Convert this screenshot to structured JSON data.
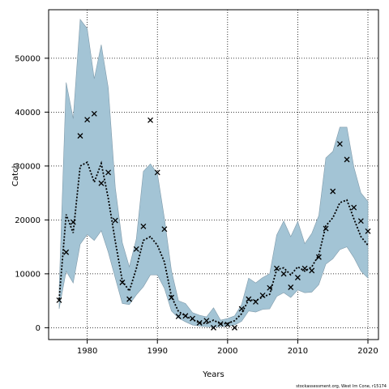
{
  "chart_data": {
    "type": "line",
    "title": "",
    "xlabel": "Years",
    "ylabel": "Catch",
    "xlim": [
      1974.5,
      2021.5
    ],
    "ylim": [
      -2200,
      59000
    ],
    "x_ticks": [
      1980,
      1990,
      2000,
      2010,
      2020
    ],
    "y_ticks": [
      0,
      10000,
      20000,
      30000,
      40000,
      50000
    ],
    "grid": true,
    "grid_style": "dotted",
    "legend": "none",
    "caption": "stockassessment.org, West Irn Cone, r15174",
    "colors": {
      "band": "#a3c4d5",
      "band_edge": "#7f9aaa",
      "line": "#000000",
      "points": "#000000"
    },
    "series": [
      {
        "kind": "band",
        "x": [
          1976,
          1977,
          1978,
          1979,
          1980,
          1981,
          1982,
          1983,
          1984,
          1985,
          1986,
          1987,
          1988,
          1989,
          1990,
          1991,
          1992,
          1993,
          1994,
          1995,
          1996,
          1997,
          1998,
          1999,
          2000,
          2001,
          2002,
          2003,
          2004,
          2005,
          2006,
          2007,
          2008,
          2009,
          2010,
          2011,
          2012,
          2013,
          2014,
          2015,
          2016,
          2017,
          2018,
          2019,
          2020
        ],
        "lower": [
          3500,
          10500,
          8300,
          15500,
          17300,
          16200,
          18000,
          14000,
          9200,
          4500,
          4300,
          6100,
          7600,
          9800,
          9800,
          7300,
          3100,
          1800,
          1100,
          500,
          300,
          200,
          100,
          200,
          300,
          500,
          1200,
          3100,
          2900,
          3400,
          3500,
          5800,
          6500,
          5600,
          7000,
          6500,
          6600,
          8000,
          11800,
          12800,
          14500,
          15000,
          13000,
          10500,
          9200
        ],
        "upper": [
          7200,
          45500,
          38800,
          57200,
          55500,
          46200,
          52500,
          44500,
          26000,
          15800,
          11300,
          16500,
          29000,
          30400,
          28600,
          20300,
          10600,
          5000,
          4500,
          2800,
          2300,
          2000,
          3700,
          1400,
          1700,
          2200,
          4300,
          9200,
          8300,
          9300,
          10000,
          17200,
          19800,
          16900,
          19700,
          15600,
          17500,
          20800,
          31500,
          32700,
          37200,
          37200,
          29800,
          25000,
          23400
        ]
      },
      {
        "kind": "estimate",
        "x": [
          1976,
          1977,
          1978,
          1979,
          1980,
          1981,
          1982,
          1983,
          1984,
          1985,
          1986,
          1987,
          1988,
          1989,
          1990,
          1991,
          1992,
          1993,
          1994,
          1995,
          1996,
          1997,
          1998,
          1999,
          2000,
          2001,
          2002,
          2003,
          2004,
          2005,
          2006,
          2007,
          2008,
          2009,
          2010,
          2011,
          2012,
          2013,
          2014,
          2015,
          2016,
          2017,
          2018,
          2019,
          2020
        ],
        "y": [
          5300,
          21000,
          17600,
          30000,
          30700,
          27000,
          30500,
          24000,
          16000,
          8700,
          6800,
          11000,
          16200,
          16900,
          15300,
          12200,
          5800,
          3000,
          2200,
          1500,
          900,
          800,
          1400,
          700,
          800,
          1300,
          2600,
          5200,
          5000,
          5700,
          6200,
          10800,
          11100,
          9800,
          11300,
          10500,
          11300,
          13500,
          18900,
          20400,
          23200,
          23700,
          20200,
          16900,
          15300
        ]
      },
      {
        "kind": "observed",
        "x": [
          1976,
          1977,
          1978,
          1979,
          1980,
          1981,
          1982,
          1983,
          1984,
          1985,
          1986,
          1987,
          1988,
          1989,
          1990,
          1991,
          1992,
          1993,
          1994,
          1995,
          1996,
          1997,
          1998,
          1999,
          2000,
          2001,
          2002,
          2003,
          2004,
          2005,
          2006,
          2007,
          2008,
          2009,
          2010,
          2011,
          2012,
          2013,
          2014,
          2015,
          2016,
          2017,
          2018,
          2019,
          2020
        ],
        "y": [
          5100,
          14000,
          19600,
          35600,
          38600,
          39700,
          26800,
          28800,
          19900,
          8400,
          5300,
          14600,
          18800,
          38500,
          28800,
          18300,
          5600,
          2100,
          2200,
          1700,
          900,
          1300,
          0,
          700,
          600,
          0,
          3500,
          5300,
          4800,
          6000,
          7400,
          11000,
          10000,
          7500,
          9300,
          11000,
          10600,
          13100,
          18400,
          25300,
          34100,
          31200,
          22300,
          19800,
          17900
        ]
      }
    ]
  }
}
